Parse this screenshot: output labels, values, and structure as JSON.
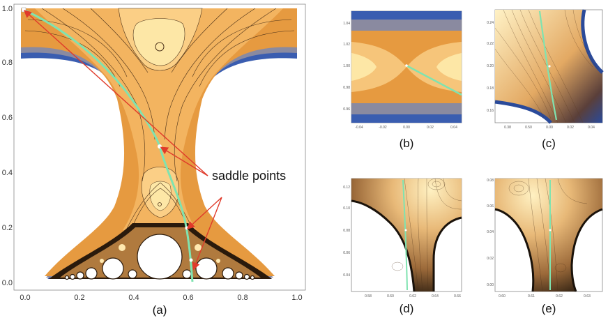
{
  "annotation": "saddle points",
  "panels": {
    "a": {
      "label": "(a)",
      "xticks": [
        "0.0",
        "0.2",
        "0.4",
        "0.6",
        "0.8",
        "1.0"
      ],
      "yticks": [
        "0.0",
        "0.2",
        "0.4",
        "0.6",
        "0.8",
        "1.0"
      ]
    },
    "b": {
      "label": "(b)",
      "xticks": [
        "-0.04",
        "-0.02",
        "0.00",
        "0.02",
        "0.04"
      ],
      "yticks": [
        "1.04",
        "1.02",
        "1.00",
        "0.98",
        "0.96"
      ]
    },
    "c": {
      "label": "(c)",
      "xticks": [
        "0.38",
        "0.50",
        "0.00",
        "0.02",
        "0.04"
      ],
      "yticks": [
        "0.24",
        "0.22",
        "0.20",
        "0.18",
        "0.16"
      ]
    },
    "d": {
      "label": "(d)",
      "xticks": [
        "0.58",
        "0.60",
        "0.62",
        "0.64",
        "0.66"
      ],
      "yticks": [
        "0.12",
        "0.10",
        "0.08",
        "0.06",
        "0.04"
      ]
    },
    "e": {
      "label": "(e)",
      "xticks": [
        "0.60",
        "0.61",
        "0.62",
        "0.63"
      ],
      "yticks": [
        "0.08",
        "0.06",
        "0.04",
        "0.02",
        "0.00"
      ]
    }
  },
  "colors": {
    "fill_light": "#fde7a6",
    "fill_mid": "#f3b460",
    "fill_dark": "#e69a40",
    "edge_blue": "#3a5db0",
    "edge_gray": "#8a8aa0",
    "contour": "#4a3018",
    "path": "#7fe3b0",
    "arrow": "#e03a2a"
  }
}
